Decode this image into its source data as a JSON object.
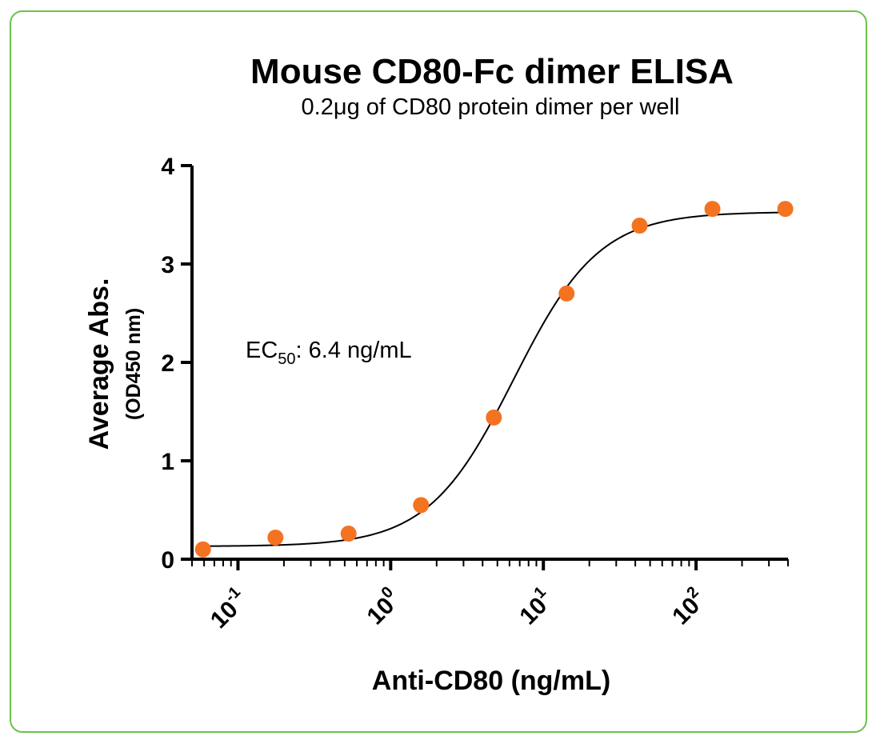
{
  "chart_data": {
    "type": "scatter",
    "title": "Mouse CD80-Fc dimer ELISA",
    "subtitle": "0.2μg of CD80 protein dimer per well",
    "xlabel": "Anti-CD80 (ng/mL)",
    "ylabel": "Average Abs.",
    "ylabel_sub": "(OD450 nm)",
    "x_scale": "log",
    "xlim": [
      0.05,
      400
    ],
    "ylim": [
      0,
      4
    ],
    "y_ticks": [
      "0",
      "1",
      "2",
      "3",
      "4"
    ],
    "x_ticks": [
      {
        "base": "10",
        "exp": "-1",
        "value": 0.1
      },
      {
        "base": "10",
        "exp": "0",
        "value": 1
      },
      {
        "base": "10",
        "exp": "1",
        "value": 10
      },
      {
        "base": "10",
        "exp": "2",
        "value": 100
      }
    ],
    "grid": false,
    "annotation": {
      "prefix": "EC",
      "sub": "50",
      "rest": ": 6.4 ng/mL"
    },
    "series": [
      {
        "marker_color": "#f47321",
        "curve_color": "#000000",
        "points": [
          {
            "x": 0.059,
            "y": 0.1
          },
          {
            "x": 0.176,
            "y": 0.22
          },
          {
            "x": 0.53,
            "y": 0.26
          },
          {
            "x": 1.58,
            "y": 0.55
          },
          {
            "x": 4.74,
            "y": 1.44
          },
          {
            "x": 14.2,
            "y": 2.7
          },
          {
            "x": 42.7,
            "y": 3.39
          },
          {
            "x": 128,
            "y": 3.56
          },
          {
            "x": 384,
            "y": 3.56
          }
        ],
        "fit": {
          "bottom": 0.13,
          "top": 3.53,
          "ec50": 6.4,
          "hill": 1.55
        }
      }
    ]
  },
  "colors": {
    "frame_border": "#6cc24a",
    "marker": "#f47321",
    "axis": "#000000"
  }
}
